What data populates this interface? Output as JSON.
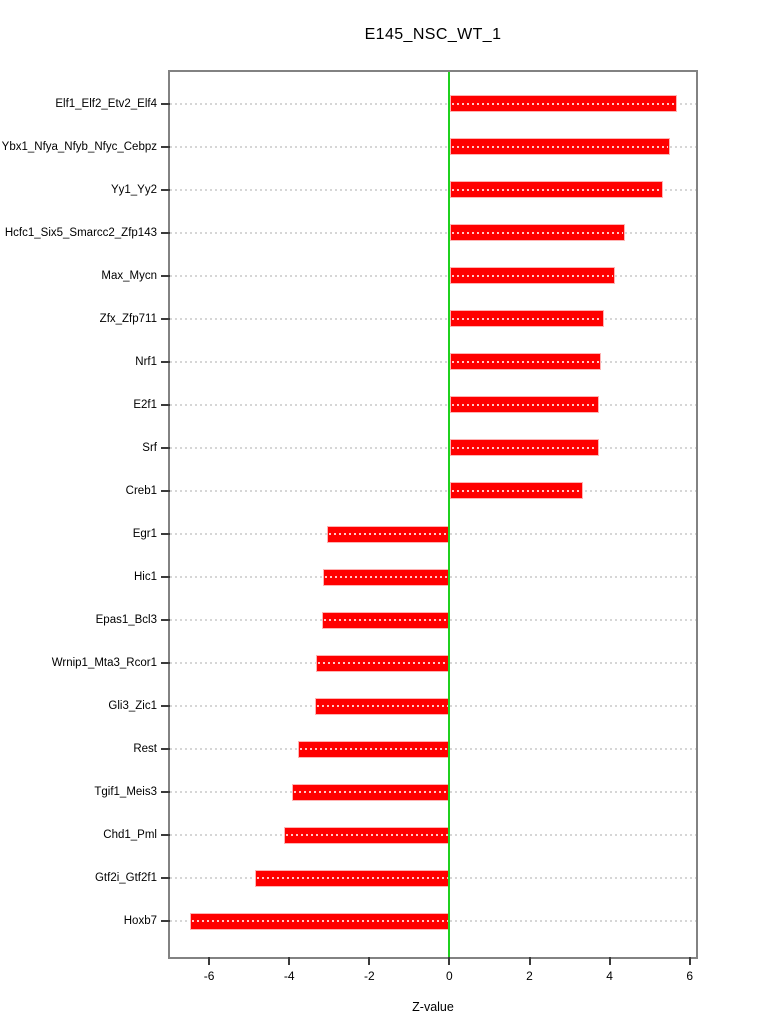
{
  "chart_data": {
    "type": "bar",
    "orientation": "horizontal",
    "title": "E145_NSC_WT_1",
    "xlabel": "Z-value",
    "xlim": [
      -6.98,
      6.16
    ],
    "xticks": [
      -6,
      -4,
      -2,
      0,
      2,
      4,
      6
    ],
    "grid": "dotted horizontal line at each category, full plot width",
    "legend": "none",
    "categories": [
      "Elf1_Elf2_Etv2_Elf4",
      "Ybx1_Nfya_Nfyb_Nfyc_Cebpz",
      "Yy1_Yy2",
      "Hcfc1_Six5_Smarcc2_Zfp143",
      "Max_Mycn",
      "Zfx_Zfp711",
      "Nrf1",
      "E2f1",
      "Srf",
      "Creb1",
      "Egr1",
      "Hic1",
      "Epas1_Bcl3",
      "Wrnip1_Mta3_Rcor1",
      "Gli3_Zic1",
      "Rest",
      "Tgif1_Meis3",
      "Chd1_Pml",
      "Gtf2i_Gtf2f1",
      "Hoxb7"
    ],
    "values": [
      5.67,
      5.49,
      5.31,
      4.37,
      4.1,
      3.84,
      3.77,
      3.72,
      3.7,
      3.3,
      -3.02,
      -3.14,
      -3.16,
      -3.3,
      -3.33,
      -3.76,
      -3.9,
      -4.1,
      -4.83,
      -6.45
    ],
    "colors": {
      "bar": "#ff0000",
      "zero_line": "#1fd11f",
      "box_border": "#828282",
      "axis_tick": "#3a3a3a",
      "grid_dot": "#d6d6d6",
      "text": "#000000",
      "background": "#ffffff"
    }
  }
}
